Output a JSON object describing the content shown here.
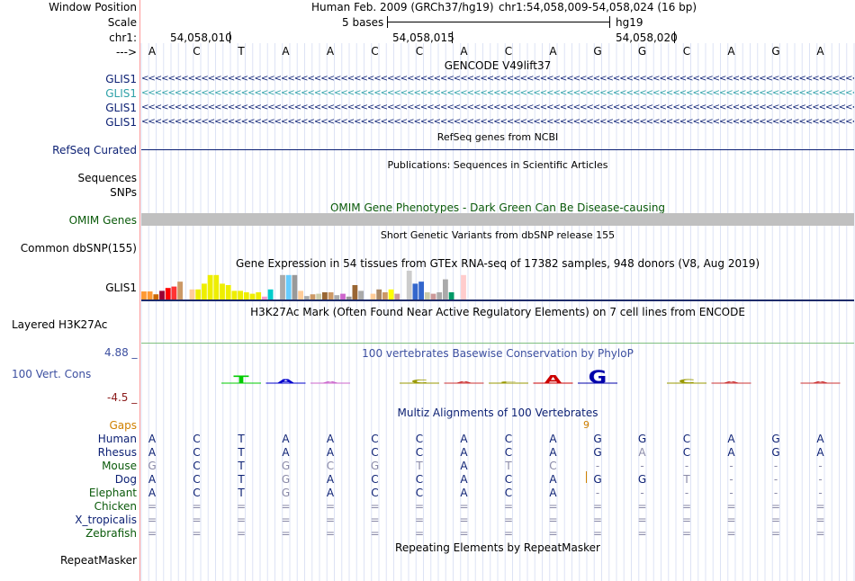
{
  "colors": {
    "label_blue": "#0b1f73",
    "label_green": "#0a5a0a",
    "label_orange": "#d08000",
    "label_red": "#8b1a1a",
    "gencode_alt": "#2ea1a8",
    "omim_bar": "#c0c0c0",
    "conservation_blue": "#3c4fa0"
  },
  "header": {
    "window_position_label": "Window Position",
    "scale_label": "Scale",
    "chr_label": "chr1:",
    "arrow_label": "--->",
    "assembly": "Human Feb. 2009 (GRCh37/hg19)",
    "position": "chr1:54,058,009-54,058,024 (16 bp)",
    "scale_text": "5 bases",
    "db": "hg19",
    "ticks": [
      "54,058,010",
      "54,058,015",
      "54,058,020"
    ]
  },
  "sequence": [
    "A",
    "C",
    "T",
    "A",
    "A",
    "C",
    "C",
    "A",
    "C",
    "A",
    "G",
    "G",
    "C",
    "A",
    "G",
    "A"
  ],
  "gencode": {
    "title": "GENCODE V49lift37",
    "labels": [
      "GLIS1",
      "GLIS1",
      "GLIS1",
      "GLIS1"
    ],
    "arrows": "<<<<<<<<<<<<<<<<<<<<<<<<<<<<<<<<<<<<<<<<<<<<<<<<<<<<<<<<<<<<<<<<<<<<<<<<<<<<<<<<<<<<<<<<<<<<<<<<<<<<<<<<<<<<<<<<<<<<<<<<<<<<<<<<<<<<<<<<<<<<<<<<<<<<<<<<<<<<<"
  },
  "refseq": {
    "title": "RefSeq genes from NCBI",
    "label": "RefSeq Curated"
  },
  "publications": {
    "title": "Publications: Sequences in Scientific Articles",
    "label1": "Sequences",
    "label2": "SNPs"
  },
  "omim": {
    "title": "OMIM Gene Phenotypes - Dark Green Can Be Disease-causing",
    "label": "OMIM Genes"
  },
  "dbsnp": {
    "title": "Short Genetic Variants from dbSNP release 155",
    "label": "Common dbSNP(155)"
  },
  "gtex": {
    "title": "Gene Expression in 54 tissues from GTEx RNA-seq of 17382 samples, 948 donors (V8, Aug 2019)",
    "label": "GLIS1",
    "bars": [
      {
        "c": "#ff9933",
        "h": 0.28
      },
      {
        "c": "#ff9933",
        "h": 0.28
      },
      {
        "c": "#cc6600",
        "h": 0.18
      },
      {
        "c": "#990033",
        "h": 0.3
      },
      {
        "c": "#ff0000",
        "h": 0.4
      },
      {
        "c": "#ff3333",
        "h": 0.45
      },
      {
        "c": "#cc9966",
        "h": 0.62
      },
      {
        "c": "#ffffff",
        "h": 0.0
      },
      {
        "c": "#ffcc99",
        "h": 0.35
      },
      {
        "c": "#eeee00",
        "h": 0.35
      },
      {
        "c": "#eeee00",
        "h": 0.55
      },
      {
        "c": "#eeee00",
        "h": 0.85
      },
      {
        "c": "#eeee00",
        "h": 0.85
      },
      {
        "c": "#eeee00",
        "h": 0.55
      },
      {
        "c": "#eeee00",
        "h": 0.5
      },
      {
        "c": "#eeee00",
        "h": 0.3
      },
      {
        "c": "#eeee00",
        "h": 0.3
      },
      {
        "c": "#eeee00",
        "h": 0.25
      },
      {
        "c": "#eeee00",
        "h": 0.2
      },
      {
        "c": "#eeee00",
        "h": 0.25
      },
      {
        "c": "#ff99cc",
        "h": 0.1
      },
      {
        "c": "#00cccc",
        "h": 0.35
      },
      {
        "c": "#ffffff",
        "h": 0.0
      },
      {
        "c": "#aaaaaa",
        "h": 0.85
      },
      {
        "c": "#66ccff",
        "h": 0.85
      },
      {
        "c": "#999999",
        "h": 0.85
      },
      {
        "c": "#ffcc99",
        "h": 0.3
      },
      {
        "c": "#aaaaaa",
        "h": 0.12
      },
      {
        "c": "#cc9966",
        "h": 0.18
      },
      {
        "c": "#ccccaa",
        "h": 0.2
      },
      {
        "c": "#996633",
        "h": 0.25
      },
      {
        "c": "#cc9966",
        "h": 0.25
      },
      {
        "c": "#aaaaaa",
        "h": 0.15
      },
      {
        "c": "#cc66cc",
        "h": 0.2
      },
      {
        "c": "#999999",
        "h": 0.1
      },
      {
        "c": "#996633",
        "h": 0.5
      },
      {
        "c": "#aaaaaa",
        "h": 0.3
      },
      {
        "c": "#ffffff",
        "h": 0.0
      },
      {
        "c": "#ffcc99",
        "h": 0.2
      },
      {
        "c": "#aa8866",
        "h": 0.35
      },
      {
        "c": "#cc9966",
        "h": 0.25
      },
      {
        "c": "#ffff00",
        "h": 0.35
      },
      {
        "c": "#cc9999",
        "h": 0.2
      },
      {
        "c": "#ffffff",
        "h": 0.0
      },
      {
        "c": "#cccccc",
        "h": 1.0
      },
      {
        "c": "#3366cc",
        "h": 0.55
      },
      {
        "c": "#3366cc",
        "h": 0.62
      },
      {
        "c": "#ccccaa",
        "h": 0.25
      },
      {
        "c": "#cc9999",
        "h": 0.2
      },
      {
        "c": "#aaaaaa",
        "h": 0.25
      },
      {
        "c": "#aaaaaa",
        "h": 0.7
      },
      {
        "c": "#009966",
        "h": 0.25
      },
      {
        "c": "#ffffff",
        "h": 0.0
      },
      {
        "c": "#ffcccc",
        "h": 0.85
      }
    ]
  },
  "h3k27ac": {
    "title": "H3K27Ac Mark (Often Found Near Active Regulatory Elements) on 7 cell lines from ENCODE",
    "label": "Layered H3K27Ac"
  },
  "conservation": {
    "title": "100 vertebrates Basewise Conservation by PhyloP",
    "label": "100 Vert. Cons",
    "ymax": "4.88 _",
    "ymin": "-4.5 _",
    "glyphs": [
      "",
      "",
      "T",
      "A",
      "A",
      "",
      "C",
      "A",
      "C",
      "A",
      "G",
      "",
      "C",
      "A",
      "",
      "A"
    ],
    "glyph_colors": [
      "#000000",
      "#000000",
      "#00cc00",
      "#0000cc",
      "#cc66cc",
      "#000000",
      "#999900",
      "#cc3333",
      "#999900",
      "#cc0000",
      "#0000aa",
      "#000000",
      "#999900",
      "#cc3333",
      "#000000",
      "#cc3333"
    ],
    "glyph_scores": [
      0,
      0,
      0.6,
      0.3,
      0.15,
      0,
      0.25,
      0.1,
      0.1,
      0.65,
      1.0,
      0,
      0.3,
      0.12,
      0,
      0.12
    ]
  },
  "multiz": {
    "title": "Multiz Alignments of 100 Vertebrates",
    "gaps_label": "Gaps",
    "gap_count": "9",
    "species": [
      {
        "name": "Human",
        "color": "#0b1f73",
        "bases": [
          "A",
          "C",
          "T",
          "A",
          "A",
          "C",
          "C",
          "A",
          "C",
          "A",
          "G",
          "G",
          "C",
          "A",
          "G",
          "A"
        ],
        "dim": [
          0,
          0,
          0,
          0,
          0,
          0,
          0,
          0,
          0,
          0,
          0,
          0,
          0,
          0,
          0,
          0
        ]
      },
      {
        "name": "Rhesus",
        "color": "#0b1f73",
        "bases": [
          "A",
          "C",
          "T",
          "A",
          "A",
          "C",
          "C",
          "A",
          "C",
          "A",
          "G",
          "A",
          "C",
          "A",
          "G",
          "A"
        ],
        "dim": [
          0,
          0,
          0,
          0,
          0,
          0,
          0,
          0,
          0,
          0,
          0,
          1,
          0,
          0,
          0,
          0
        ]
      },
      {
        "name": "Mouse",
        "color": "#0a5a0a",
        "bases": [
          "G",
          "C",
          "T",
          "G",
          "C",
          "G",
          "T",
          "A",
          "T",
          "C",
          "-",
          "-",
          "-",
          "-",
          "-",
          "-"
        ],
        "dim": [
          1,
          0,
          0,
          1,
          1,
          1,
          1,
          0,
          1,
          1,
          1,
          1,
          1,
          1,
          1,
          1
        ]
      },
      {
        "name": "Dog",
        "color": "#0b1f73",
        "bases": [
          "A",
          "C",
          "T",
          "G",
          "A",
          "C",
          "C",
          "A",
          "C",
          "A",
          "G",
          "G",
          "T",
          "-",
          "-",
          "-"
        ],
        "dim": [
          0,
          0,
          0,
          1,
          0,
          0,
          0,
          0,
          0,
          0,
          0,
          0,
          1,
          1,
          1,
          1
        ]
      },
      {
        "name": "Elephant",
        "color": "#0a5a0a",
        "bases": [
          "A",
          "C",
          "T",
          "G",
          "A",
          "C",
          "C",
          "A",
          "C",
          "A",
          "-",
          "-",
          "-",
          "-",
          "-",
          "-"
        ],
        "dim": [
          0,
          0,
          0,
          1,
          0,
          0,
          0,
          0,
          0,
          0,
          1,
          1,
          1,
          1,
          1,
          1
        ]
      },
      {
        "name": "Chicken",
        "color": "#0a5a0a",
        "bases": [
          "=",
          "=",
          "=",
          "=",
          "=",
          "=",
          "=",
          "=",
          "=",
          "=",
          "=",
          "=",
          "=",
          "=",
          "=",
          "="
        ],
        "dim": [
          1,
          1,
          1,
          1,
          1,
          1,
          1,
          1,
          1,
          1,
          1,
          1,
          1,
          1,
          1,
          1
        ]
      },
      {
        "name": "X_tropicalis",
        "color": "#0b1f73",
        "bases": [
          "=",
          "=",
          "=",
          "=",
          "=",
          "=",
          "=",
          "=",
          "=",
          "=",
          "=",
          "=",
          "=",
          "=",
          "=",
          "="
        ],
        "dim": [
          1,
          1,
          1,
          1,
          1,
          1,
          1,
          1,
          1,
          1,
          1,
          1,
          1,
          1,
          1,
          1
        ]
      },
      {
        "name": "Zebrafish",
        "color": "#0a5a0a",
        "bases": [
          "=",
          "=",
          "=",
          "=",
          "=",
          "=",
          "=",
          "=",
          "=",
          "=",
          "=",
          "=",
          "=",
          "=",
          "=",
          "="
        ],
        "dim": [
          1,
          1,
          1,
          1,
          1,
          1,
          1,
          1,
          1,
          1,
          1,
          1,
          1,
          1,
          1,
          1
        ]
      }
    ]
  },
  "repeatmasker": {
    "title": "Repeating Elements by RepeatMasker",
    "label": "RepeatMasker"
  }
}
